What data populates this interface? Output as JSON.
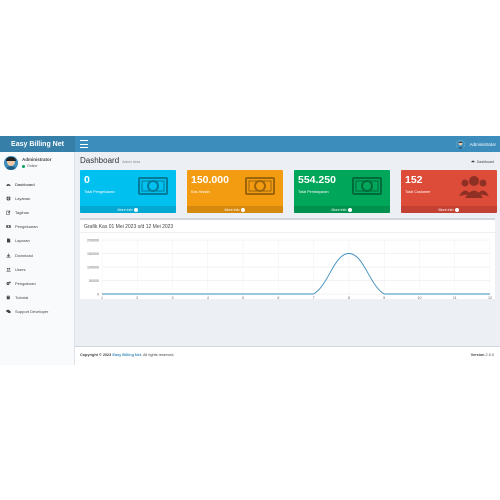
{
  "header": {
    "logo": "Easy Billing Net",
    "user": "Administrator"
  },
  "sidebar": {
    "user_name": "Administrator",
    "status": "Online",
    "items": [
      {
        "label": "Dashboard",
        "icon": "dashboard-icon"
      },
      {
        "label": "Layanan",
        "icon": "globe-icon"
      },
      {
        "label": "Tagihan",
        "icon": "edit-icon"
      },
      {
        "label": "Pengeluaran",
        "icon": "money-icon"
      },
      {
        "label": "Laporan",
        "icon": "file-icon"
      },
      {
        "label": "Download",
        "icon": "download-icon"
      },
      {
        "label": "Users",
        "icon": "users-icon"
      },
      {
        "label": "Pengaturan",
        "icon": "gears-icon"
      },
      {
        "label": "Tutorial",
        "icon": "book-icon"
      },
      {
        "label": "Support Developer",
        "icon": "comments-icon"
      }
    ]
  },
  "page": {
    "title": "Dashboard",
    "subtitle": "Admin Area",
    "breadcrumb": "Dashboard"
  },
  "boxes": [
    {
      "value": "0",
      "label": "Total Pengeluaran",
      "footer": "More info",
      "color": "#00c0ef",
      "icon": "money-icon"
    },
    {
      "value": "150.000",
      "label": "Kas Harian",
      "footer": "More info",
      "color": "#f39c12",
      "icon": "money-icon"
    },
    {
      "value": "554.250",
      "label": "Total Pembayaran",
      "footer": "More info",
      "color": "#00a65a",
      "icon": "money-icon"
    },
    {
      "value": "152",
      "label": "Total Customer",
      "footer": "More info",
      "color": "#dd4b39",
      "icon": "users-icon"
    }
  ],
  "chart_title": "Grafik Kas 01 Mei 2023 s/d 12 Mei 2023",
  "chart_data": {
    "type": "line",
    "title": "Grafik Kas 01 Mei 2023 s/d 12 Mei 2023",
    "x": [
      1,
      2,
      3,
      4,
      5,
      6,
      7,
      8,
      9,
      10,
      11,
      12
    ],
    "series": [
      {
        "values": [
          0,
          0,
          0,
          0,
          0,
          0,
          0,
          150000,
          0,
          0,
          0,
          0
        ]
      }
    ],
    "yticks": [
      "200000",
      "150000",
      "100000",
      "50000",
      "0"
    ],
    "xticks": [
      "1",
      "2",
      "3",
      "4",
      "5",
      "6",
      "7",
      "8",
      "9",
      "10",
      "11",
      "12"
    ],
    "ylim": [
      0,
      200000
    ],
    "xlim": [
      1,
      12
    ],
    "grid": true,
    "color": "#3c8dbc"
  },
  "footer": {
    "copyright_prefix": "Copyright © 2023",
    "brand": "Easy Billing Net.",
    "rights": "All rights reserved.",
    "version_label": "Version",
    "version": "2.0.0"
  }
}
